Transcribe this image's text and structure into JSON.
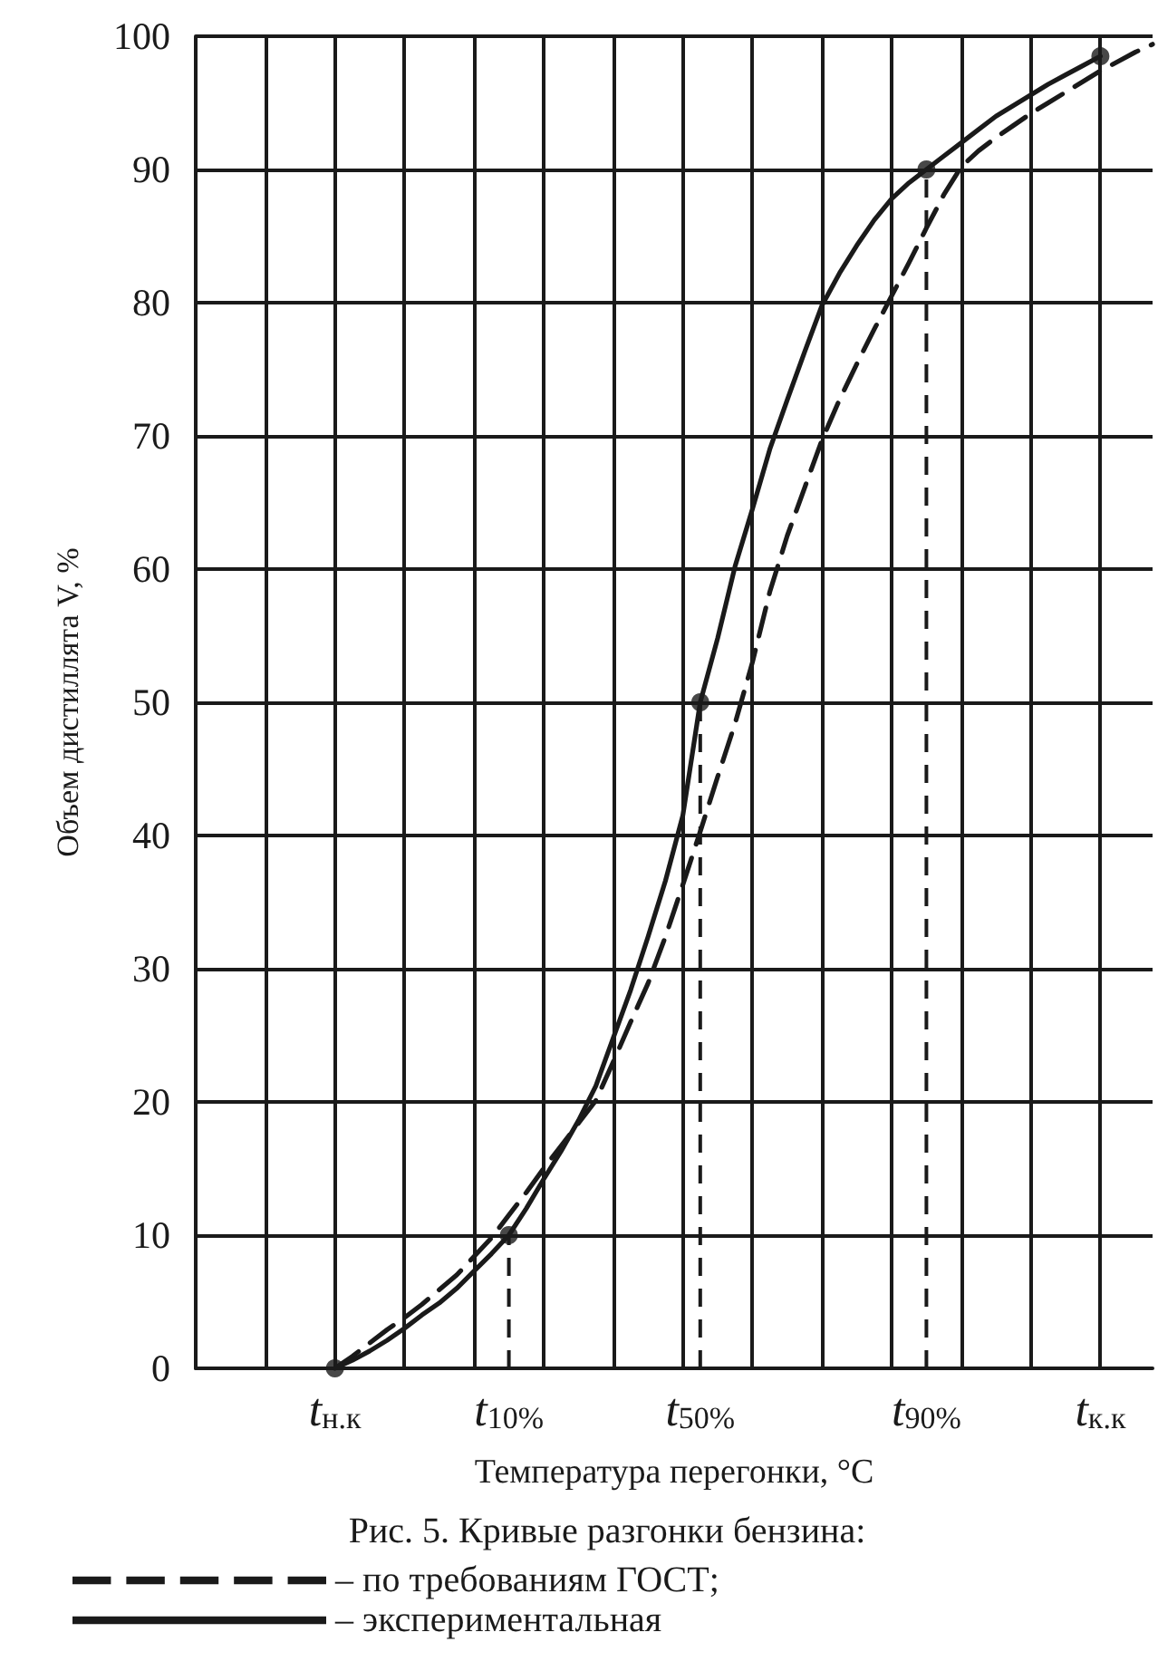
{
  "chart_data": {
    "type": "line",
    "xlabel": "Температура перегонки, °С",
    "ylabel": "Объем дистиллята V, %",
    "categories": [
      null,
      null,
      null,
      null,
      null,
      null,
      null,
      null,
      "t$_{н.к}$",
      null,
      null,
      null,
      null,
      null,
      null,
      null,
      null,
      null,
      "t$_{10%}$",
      null,
      null,
      null,
      null,
      null,
      null,
      null,
      null,
      null,
      null,
      "t$_{50%}$",
      null,
      null,
      null,
      null,
      null,
      null,
      null,
      null,
      null,
      null,
      null,
      null,
      "t$_{90%}$",
      null,
      null,
      null,
      null,
      null,
      null,
      null,
      null,
      null,
      "t$_{к.к}$",
      null,
      null,
      null
    ],
    "ylim": [
      0,
      100
    ],
    "yticks": [
      0,
      10,
      20,
      30,
      40,
      50,
      60,
      70,
      80,
      90,
      100
    ],
    "grid": true,
    "legend": "bottom",
    "series": [
      {
        "name": "– по требованиям ГОСТ;",
        "color": "#1a1a1a",
        "line_style": "dashed",
        "marker": "none",
        "values": [
          null,
          null,
          null,
          null,
          null,
          null,
          null,
          null,
          0,
          0.9,
          1.9,
          2.9,
          3.8,
          4.8,
          5.9,
          7,
          8.4,
          9.8,
          11.5,
          13.2,
          15,
          16.7,
          18.4,
          20.1,
          23,
          26,
          28.9,
          32.4,
          36.3,
          40.3,
          44.4,
          48.4,
          53,
          58.3,
          62.5,
          66.1,
          69.7,
          72.7,
          75.4,
          78,
          80.5,
          83,
          85.6,
          88.1,
          90.2,
          91.4,
          92.4,
          93.3,
          94.2,
          95,
          95.8,
          96.6,
          97.4,
          98.1,
          98.8,
          99.4
        ]
      },
      {
        "name": "– экспериментальная",
        "color": "#1a1a1a",
        "line_style": "solid",
        "marker": "none",
        "values": [
          null,
          null,
          null,
          null,
          null,
          null,
          null,
          null,
          0,
          0.6,
          1.3,
          2.1,
          3,
          4,
          4.9,
          6,
          7.3,
          8.6,
          10,
          12,
          14.2,
          16.3,
          18.6,
          21.2,
          24.8,
          28.4,
          32.4,
          36.6,
          41.5,
          50,
          54.8,
          60.2,
          64.5,
          69,
          72.7,
          76.3,
          79.8,
          82.2,
          84.3,
          86.2,
          87.8,
          89,
          90,
          91,
          92,
          93,
          94,
          94.8,
          95.6,
          96.4,
          97.1,
          97.8,
          98.5,
          null,
          null,
          null
        ]
      },
      {
        "type": "scatter",
        "color": "#1a1a1a",
        "marker": "circle",
        "line_style": "dashed",
        "values": [
          null,
          null,
          null,
          null,
          null,
          null,
          null,
          null,
          0,
          null,
          null,
          null,
          null,
          null,
          null,
          null,
          null,
          null,
          10,
          null,
          null,
          null,
          null,
          null,
          null,
          null,
          null,
          null,
          null,
          50,
          null,
          null,
          null,
          null,
          null,
          null,
          null,
          null,
          null,
          null,
          null,
          null,
          90,
          null,
          null,
          null,
          null,
          null,
          null,
          null,
          null,
          null,
          98.5,
          null,
          null,
          null
        ],
        "errors": [
          null,
          null,
          null,
          null,
          null,
          null,
          null,
          null,
          null,
          null,
          null,
          null,
          null,
          null,
          null,
          null,
          null,
          null,
          [
            0,
            10
          ],
          null,
          null,
          null,
          null,
          null,
          null,
          null,
          null,
          null,
          null,
          [
            0,
            50
          ],
          null,
          null,
          null,
          null,
          null,
          null,
          null,
          null,
          null,
          null,
          null,
          null,
          [
            0,
            90
          ],
          null,
          null,
          null,
          null,
          null,
          null,
          null,
          null,
          null,
          null,
          null,
          null,
          null
        ]
      }
    ],
    "annotations": [
      "Рис. 5. Кривые разгонки бензина:"
    ]
  }
}
